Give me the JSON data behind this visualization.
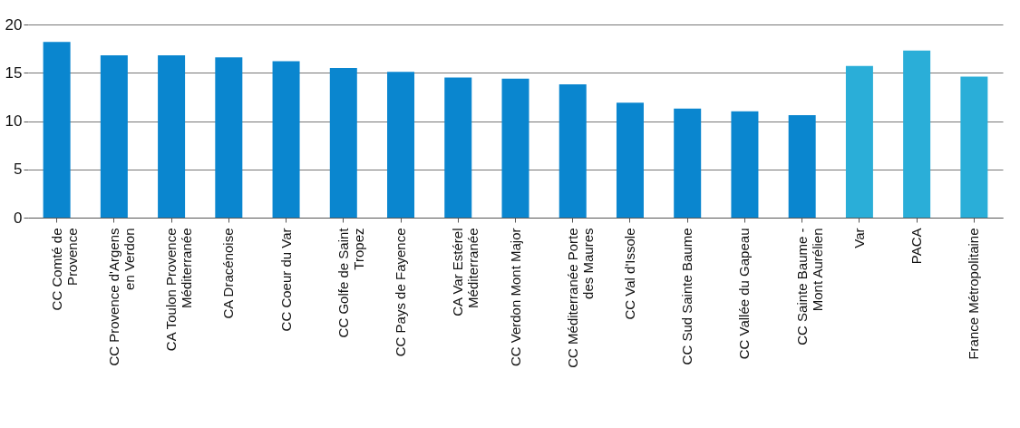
{
  "chart_data": {
    "type": "bar",
    "categories": [
      "CC Comté de\nProvence",
      "CC Provence d'Argens\nen Verdon",
      "CA Toulon Provence\nMéditerranée",
      "CA Dracénoise",
      "CC Coeur du Var",
      "CC Golfe de Saint\nTropez",
      "CC Pays de Fayence",
      "CA Var Estérel\nMéditerranée",
      "CC Verdon Mont Major",
      "CC Méditerranée Porte\ndes Maures",
      "CC Val d'Issole",
      "CC Sud Sainte Baume",
      "CC Vallée du Gapeau",
      "CC Sainte Baume -\nMont Aurélien",
      "Var",
      "PACA",
      "France Métropolitaine"
    ],
    "values": [
      18.2,
      16.8,
      16.8,
      16.6,
      16.2,
      15.5,
      15.1,
      14.5,
      14.4,
      13.8,
      11.9,
      11.3,
      11.0,
      10.6,
      15.7,
      17.3,
      14.6
    ],
    "colors": [
      "#0a86cf",
      "#0a86cf",
      "#0a86cf",
      "#0a86cf",
      "#0a86cf",
      "#0a86cf",
      "#0a86cf",
      "#0a86cf",
      "#0a86cf",
      "#0a86cf",
      "#0a86cf",
      "#0a86cf",
      "#0a86cf",
      "#0a86cf",
      "#2aaed8",
      "#2aaed8",
      "#2aaed8"
    ],
    "ylim": [
      0,
      20
    ],
    "yticks": [
      0,
      5,
      10,
      15,
      20
    ],
    "grid": "y",
    "legend": false
  }
}
